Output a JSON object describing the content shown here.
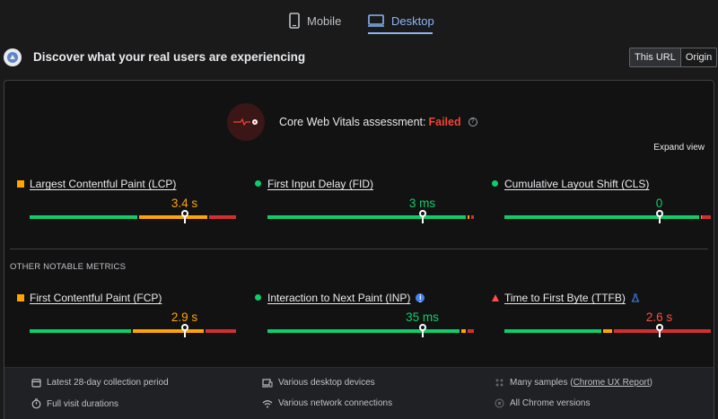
{
  "tabs": [
    {
      "label": "Mobile",
      "icon": "phone-icon",
      "active": false
    },
    {
      "label": "Desktop",
      "icon": "monitor-icon",
      "active": true
    }
  ],
  "header": {
    "title": "Discover what your real users are experiencing",
    "toggle": [
      "This URL",
      "Origin"
    ],
    "toggle_selected": "This URL"
  },
  "assessment": {
    "prefix": "Core Web Vitals assessment: ",
    "status": "Failed",
    "expand_label": "Expand view"
  },
  "colors": {
    "good": "#0cce6b",
    "needs_improvement": "#ffa400",
    "poor": "#ff4e42"
  },
  "core_metrics": [
    {
      "name": "Largest Contentful Paint (LCP)",
      "value": "3.4 s",
      "rating": "needs-improvement",
      "marker": "square",
      "distribution": {
        "good": 0.53,
        "needs_improvement": 0.34,
        "poor": 0.13
      },
      "position": 0.75
    },
    {
      "name": "First Input Delay (FID)",
      "value": "3 ms",
      "rating": "good",
      "marker": "circle",
      "distribution": {
        "good": 0.97,
        "needs_improvement": 0.015,
        "poor": 0.015
      },
      "position": 0.75
    },
    {
      "name": "Cumulative Layout Shift (CLS)",
      "value": "0",
      "rating": "good",
      "marker": "circle",
      "distribution": {
        "good": 0.95,
        "needs_improvement": 0.005,
        "poor": 0.045
      },
      "position": 0.75
    }
  ],
  "other_label": "OTHER NOTABLE METRICS",
  "other_metrics": [
    {
      "name": "First Contentful Paint (FCP)",
      "value": "2.9 s",
      "rating": "needs-improvement",
      "marker": "square",
      "distribution": {
        "good": 0.5,
        "needs_improvement": 0.35,
        "poor": 0.15
      },
      "position": 0.75,
      "extra": ""
    },
    {
      "name": "Interaction to Next Paint (INP)",
      "value": "35 ms",
      "rating": "good",
      "marker": "circle",
      "distribution": {
        "good": 0.94,
        "needs_improvement": 0.03,
        "poor": 0.03
      },
      "position": 0.75,
      "extra": "info-icon"
    },
    {
      "name": "Time to First Byte (TTFB)",
      "value": "2.6 s",
      "rating": "poor",
      "marker": "triangle",
      "distribution": {
        "good": 0.48,
        "needs_improvement": 0.05,
        "poor": 0.47
      },
      "position": 0.75,
      "extra": "flask-icon"
    }
  ],
  "footer": {
    "items": [
      {
        "icon": "calendar-icon",
        "text": "Latest 28-day collection period"
      },
      {
        "icon": "devices-icon",
        "text": "Various desktop devices"
      },
      {
        "icon": "samples-icon",
        "text": "Many samples (",
        "link": "Chrome UX Report",
        "suffix": ")"
      },
      {
        "icon": "timer-icon",
        "text": "Full visit durations"
      },
      {
        "icon": "wifi-icon",
        "text": "Various network connections"
      },
      {
        "icon": "chrome-icon",
        "text": "All Chrome versions"
      }
    ]
  }
}
